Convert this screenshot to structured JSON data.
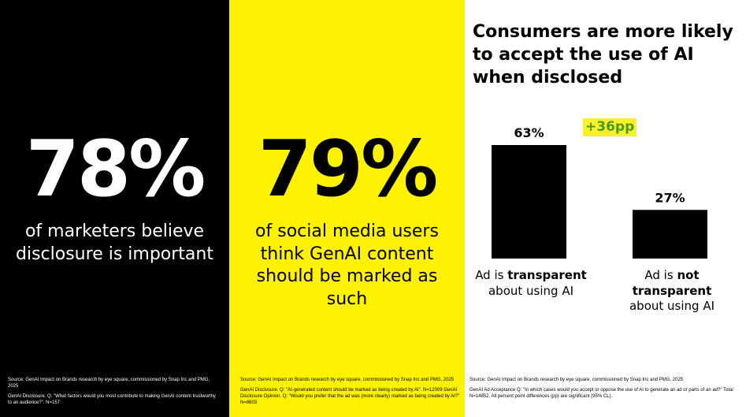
{
  "colors": {
    "black": "#000000",
    "yellow": "#fff200",
    "white": "#ffffff",
    "uplift_text": "#4a9b17",
    "uplift_bg": "#f7f02a"
  },
  "panel1": {
    "stat": "78%",
    "caption": [
      "of marketers believe",
      "disclosure is important"
    ],
    "source": [
      "Source: GenAI Impact on Brands research by eye square, commissioned by Snap Inc and PMG, 2025",
      "GenAI Disclosure. Q: \"What factors would you most contribute to making GenAI content trustworthy to an audience?\". N=157"
    ]
  },
  "panel2": {
    "stat": "79%",
    "caption": [
      "of social media users",
      "think GenAI content",
      "should be marked as",
      "such"
    ],
    "source": [
      "Source: GenAI Impact on Brands research by eye square, commissioned by Snap Inc and PMG, 2025",
      "GenAI Disclosure. Q: \"AI-generated content should be marked as being created by AI\". N=12009 GenAI Disclosure Opinion. Q: \"Would you prefer that the ad was (more clearly) marked as being created by AI?\" N=8603"
    ]
  },
  "panel3": {
    "title": "Consumers are more likely to accept the use of AI when disclosed",
    "uplift": "+36pp",
    "labels": [
      {
        "pre": "Ad is ",
        "bold": "transparent",
        "post": "about using AI"
      },
      {
        "pre": "Ad is ",
        "bold": "not transparent",
        "post": "about using AI"
      }
    ],
    "source": [
      "Source: GenAI Impact on Brands research by eye square, commissioned by Snap Inc and PMG, 2025",
      "GenAI Ad Acceptance Q: \"In which cases would you accept or oppose the use of AI to generate an ad or parts of an ad?\" Total N=14852. All percent point differences (pp) are significant (95% CL)."
    ]
  },
  "chart_data": {
    "type": "bar",
    "title": "Consumers are more likely to accept the use of AI when disclosed",
    "categories": [
      "Ad is transparent about using AI",
      "Ad is not transparent about using AI"
    ],
    "values": [
      63,
      27
    ],
    "value_labels": [
      "63%",
      "27%"
    ],
    "annotation": "+36pp",
    "ylim": [
      0,
      70
    ],
    "grid": false,
    "legend": "none",
    "bar_color": "#000000"
  }
}
